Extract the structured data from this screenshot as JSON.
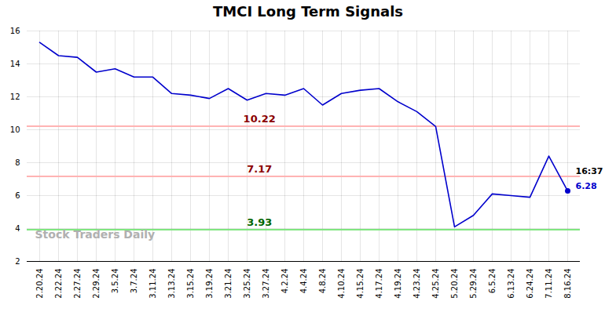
{
  "chart_data": {
    "type": "line",
    "title": "TMCI Long Term Signals",
    "categories": [
      "2.20.24",
      "2.22.24",
      "2.27.24",
      "2.29.24",
      "3.5.24",
      "3.7.24",
      "3.11.24",
      "3.13.24",
      "3.15.24",
      "3.19.24",
      "3.21.24",
      "3.25.24",
      "3.27.24",
      "4.2.24",
      "4.4.24",
      "4.8.24",
      "4.10.24",
      "4.15.24",
      "4.17.24",
      "4.19.24",
      "4.23.24",
      "4.25.24",
      "5.20.24",
      "5.29.24",
      "6.5.24",
      "6.13.24",
      "6.24.24",
      "7.11.24",
      "8.16.24"
    ],
    "values": [
      15.3,
      14.5,
      14.4,
      13.5,
      13.7,
      13.2,
      13.2,
      12.2,
      12.1,
      11.9,
      12.5,
      11.8,
      12.2,
      12.1,
      12.5,
      11.5,
      12.2,
      12.4,
      12.5,
      11.7,
      11.1,
      10.2,
      4.1,
      4.8,
      6.1,
      6.0,
      5.9,
      8.4,
      6.28
    ],
    "color": "#0000cc",
    "hlines": [
      {
        "value": 10.22,
        "label": "10.22",
        "color": "#ffb3b3",
        "label_color": "#8b0000"
      },
      {
        "value": 7.17,
        "label": "7.17",
        "color": "#ffb3b3",
        "label_color": "#8b0000"
      },
      {
        "value": 3.93,
        "label": "3.93",
        "color": "#80e680",
        "label_color": "#006400"
      }
    ],
    "annotations": [
      {
        "text": "16:37",
        "color": "#000000"
      },
      {
        "text": "6.28",
        "color": "#0000cc"
      }
    ],
    "watermark": "Stock Traders Daily",
    "ylim": [
      2,
      16
    ],
    "yticks": [
      2,
      4,
      6,
      8,
      10,
      12,
      14,
      16
    ],
    "grid": true
  }
}
